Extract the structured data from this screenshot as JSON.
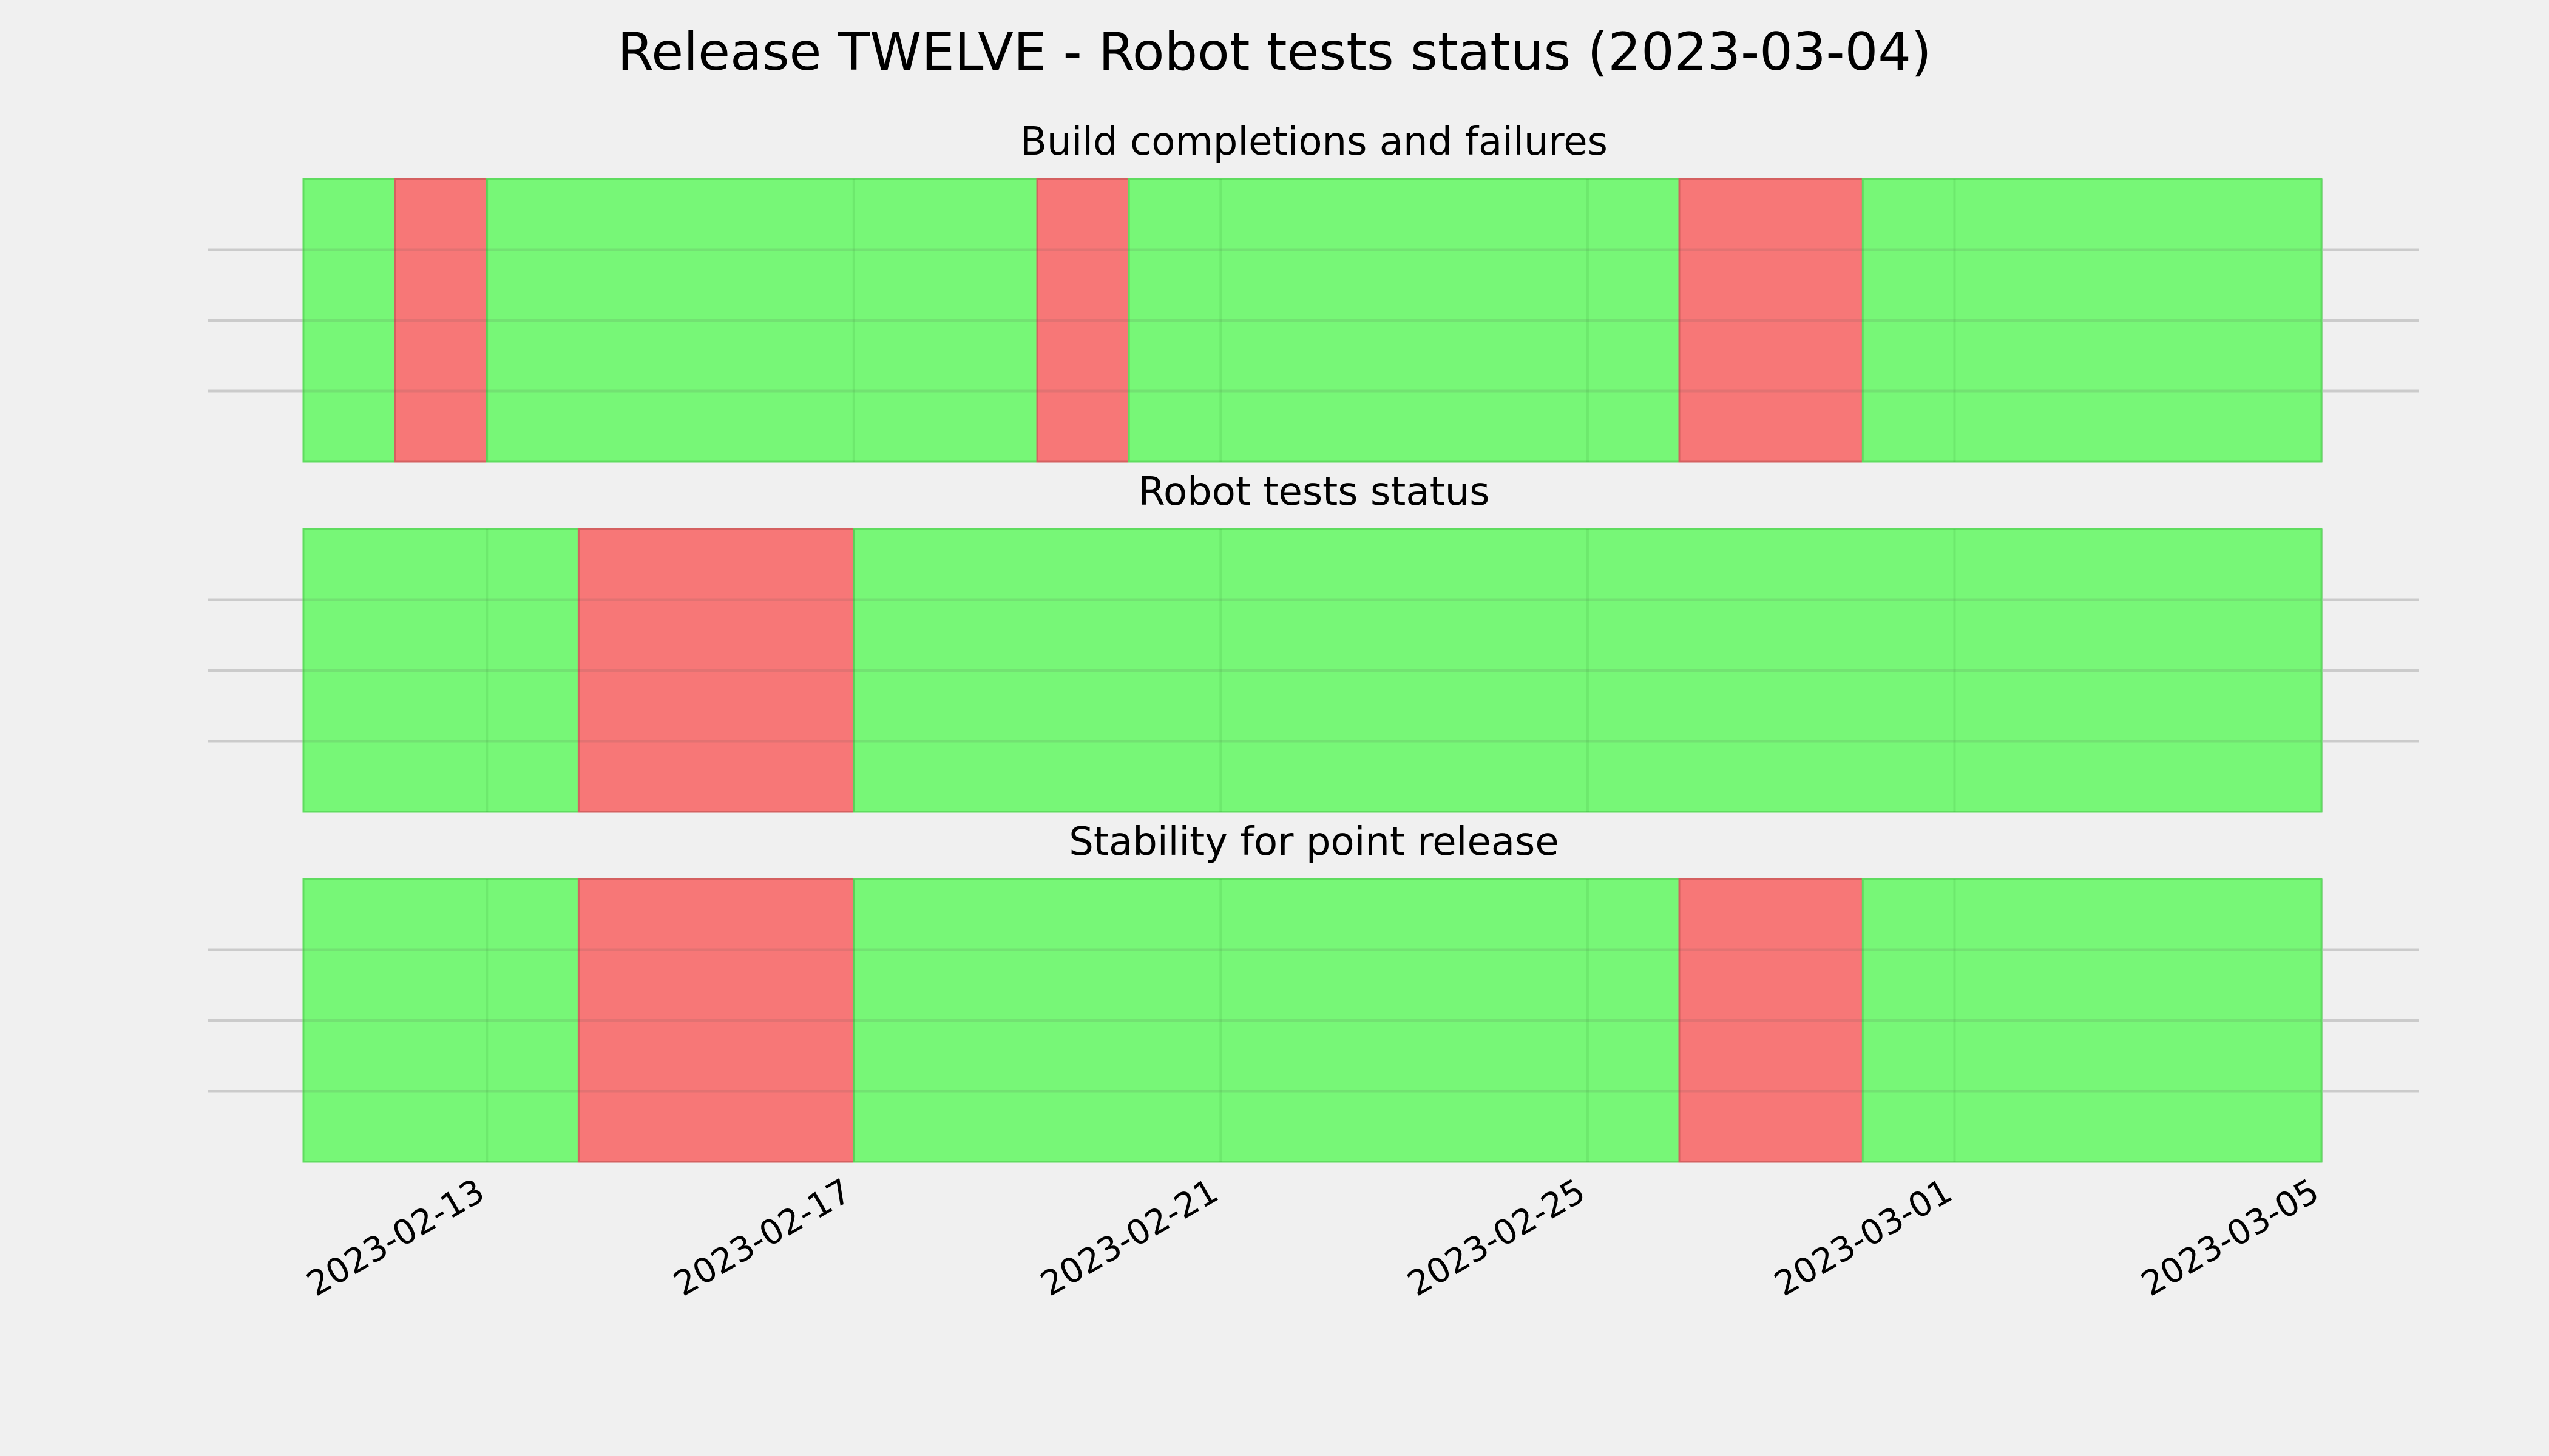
{
  "chart_data": {
    "type": "timeline",
    "title": "Release TWELVE - Robot tests status (2023-03-04)",
    "x_ticks": [
      "2023-02-13",
      "2023-02-17",
      "2023-02-21",
      "2023-02-25",
      "2023-03-01",
      "2023-03-05"
    ],
    "x_range": [
      "2023-02-11",
      "2023-03-05"
    ],
    "colors": {
      "pass": "#77f777",
      "fail": "#f77777",
      "pass_edge": "#5fdc5f",
      "fail_edge": "#d46060",
      "background": "#f0f0f0",
      "grid": "#cbcbcb"
    },
    "panels": [
      {
        "title": "Build completions and failures",
        "segments": [
          {
            "start": "2023-02-11",
            "end": "2023-02-12",
            "status": "pass"
          },
          {
            "start": "2023-02-12",
            "end": "2023-02-13",
            "status": "fail"
          },
          {
            "start": "2023-02-13",
            "end": "2023-02-19",
            "status": "pass"
          },
          {
            "start": "2023-02-19",
            "end": "2023-02-20",
            "status": "fail"
          },
          {
            "start": "2023-02-20",
            "end": "2023-02-26",
            "status": "pass"
          },
          {
            "start": "2023-02-26",
            "end": "2023-02-28",
            "status": "fail"
          },
          {
            "start": "2023-02-28",
            "end": "2023-03-05",
            "status": "pass"
          }
        ]
      },
      {
        "title": "Robot tests status",
        "segments": [
          {
            "start": "2023-02-11",
            "end": "2023-02-14",
            "status": "pass"
          },
          {
            "start": "2023-02-14",
            "end": "2023-02-17",
            "status": "fail"
          },
          {
            "start": "2023-02-17",
            "end": "2023-03-05",
            "status": "pass"
          }
        ]
      },
      {
        "title": "Stability for point release",
        "segments": [
          {
            "start": "2023-02-11",
            "end": "2023-02-14",
            "status": "pass"
          },
          {
            "start": "2023-02-14",
            "end": "2023-02-17",
            "status": "fail"
          },
          {
            "start": "2023-02-17",
            "end": "2023-02-26",
            "status": "pass"
          },
          {
            "start": "2023-02-26",
            "end": "2023-02-28",
            "status": "fail"
          },
          {
            "start": "2023-02-28",
            "end": "2023-03-05",
            "status": "pass"
          }
        ]
      }
    ],
    "grid": true
  }
}
